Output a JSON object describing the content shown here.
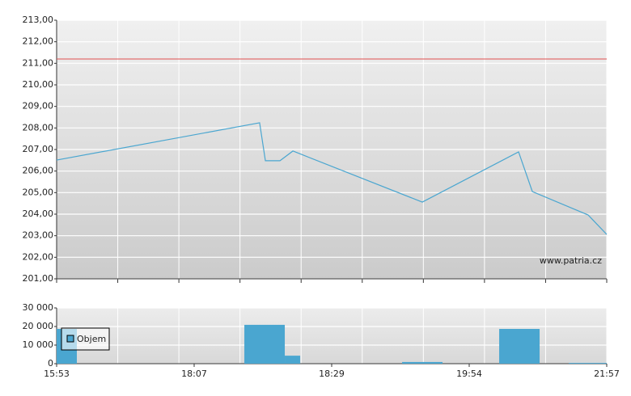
{
  "chart_data": [
    {
      "type": "line",
      "color": "#4aa6d0",
      "watermark": "www.patria.cz",
      "x": [
        0,
        1.476,
        1.518,
        1.624,
        1.718,
        2.659,
        3.359,
        3.459,
        3.865,
        4
      ],
      "values": [
        206.51,
        208.24,
        206.48,
        206.48,
        206.93,
        204.56,
        206.89,
        205.05,
        203.96,
        203.06
      ],
      "reference_line": {
        "value": 211.2,
        "color": "#e05050"
      },
      "xlim": [
        0,
        4
      ],
      "ylim": [
        201,
        213
      ],
      "yticks": [
        {
          "value": 201,
          "label": "201,00"
        },
        {
          "value": 202,
          "label": "202,00"
        },
        {
          "value": 203,
          "label": "203,00"
        },
        {
          "value": 204,
          "label": "204,00"
        },
        {
          "value": 205,
          "label": "205,00"
        },
        {
          "value": 206,
          "label": "206,00"
        },
        {
          "value": 207,
          "label": "207,00"
        },
        {
          "value": 208,
          "label": "208,00"
        },
        {
          "value": 209,
          "label": "209,00"
        },
        {
          "value": 210,
          "label": "210,00"
        },
        {
          "value": 211,
          "label": "211,00"
        },
        {
          "value": 212,
          "label": "212,00"
        },
        {
          "value": 213,
          "label": "213,00"
        }
      ],
      "grid": true
    },
    {
      "type": "bar",
      "color": "#4aa6d0",
      "legend": "Objem",
      "x": [
        0,
        1.365,
        1.659,
        2.512,
        3.218,
        3.724
      ],
      "x_end": [
        0.147,
        1.659,
        1.771,
        2.806,
        3.512,
        4
      ],
      "values": [
        18700,
        20900,
        4300,
        900,
        18700,
        400
      ],
      "xlim": [
        0,
        4
      ],
      "xticks": [
        {
          "value": 0,
          "label": "15:53"
        },
        {
          "value": 1,
          "label": "18:07"
        },
        {
          "value": 2,
          "label": "18:29"
        },
        {
          "value": 3,
          "label": "19:54"
        },
        {
          "value": 4,
          "label": "21:57"
        }
      ],
      "ylim": [
        0,
        30000
      ],
      "yticks": [
        0,
        {
          "value": 10000,
          "label": "10 000"
        },
        {
          "value": 20000,
          "label": "20 000"
        },
        {
          "value": 30000,
          "label": "30 000"
        }
      ],
      "grid": true
    }
  ]
}
